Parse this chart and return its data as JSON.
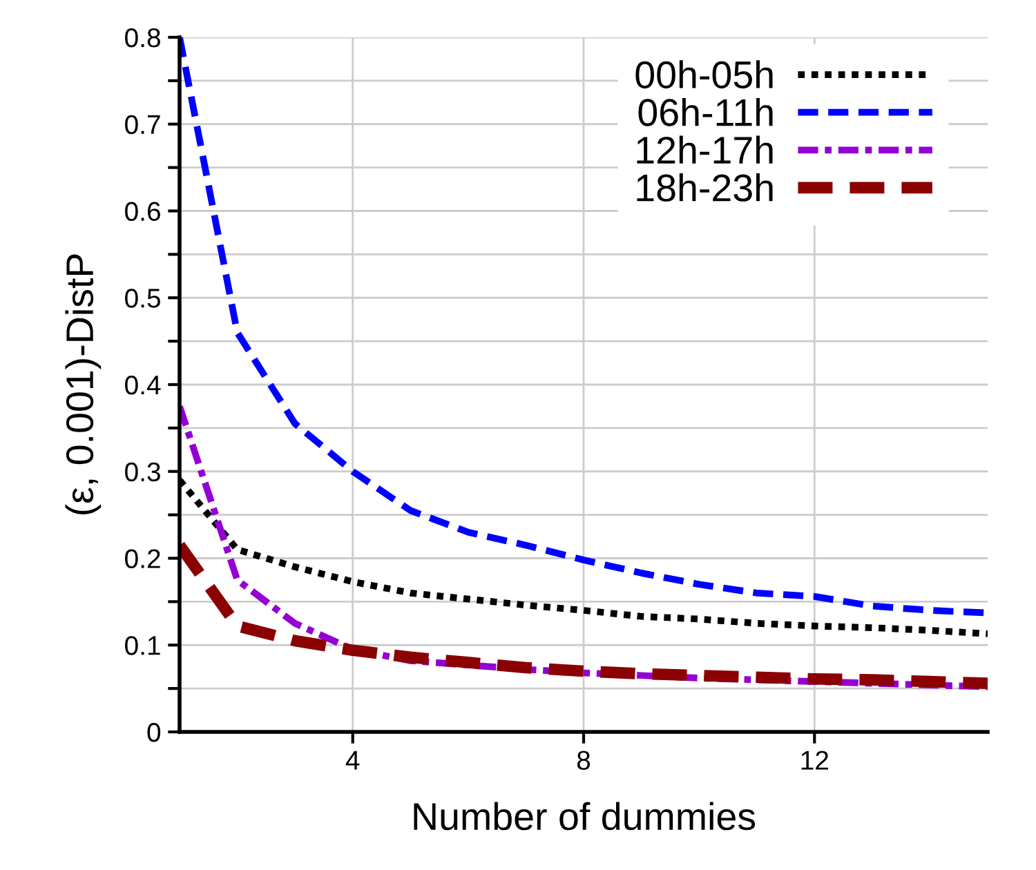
{
  "chart_data": {
    "type": "line",
    "xlabel": "Number of dummies",
    "ylabel": "(ε, 0.001)-DistP",
    "x": [
      1,
      2,
      3,
      4,
      5,
      6,
      7,
      8,
      9,
      10,
      11,
      12,
      13,
      14,
      15
    ],
    "xlim": [
      1,
      15
    ],
    "xticks": [
      4,
      8,
      12
    ],
    "ylim": [
      0,
      0.8
    ],
    "yticks": [
      0,
      {
        "value": 0.05,
        "label": null
      },
      0.1,
      {
        "value": 0.15,
        "label": null
      },
      0.2,
      {
        "value": 0.25,
        "label": null
      },
      0.3,
      {
        "value": 0.35,
        "label": null
      },
      0.4,
      {
        "value": 0.45,
        "label": null
      },
      0.5,
      {
        "value": 0.55,
        "label": null
      },
      0.6,
      {
        "value": 0.65,
        "label": null
      },
      0.7,
      {
        "value": 0.75,
        "label": null
      },
      0.8
    ],
    "grid": true,
    "legend": "top right",
    "marker": "none",
    "series": [
      {
        "name": "00h-05h",
        "color": "#000000",
        "line_style": "dotted",
        "values": [
          0.29,
          0.21,
          0.19,
          0.173,
          0.16,
          0.153,
          0.146,
          0.14,
          0.133,
          0.13,
          0.125,
          0.122,
          0.12,
          0.117,
          0.113
        ]
      },
      {
        "name": "06h-11h",
        "color": "#0000ff",
        "line_style": "dashed",
        "values": [
          0.8,
          0.46,
          0.355,
          0.3,
          0.255,
          0.23,
          0.215,
          0.198,
          0.183,
          0.17,
          0.16,
          0.156,
          0.145,
          0.14,
          0.137
        ]
      },
      {
        "name": "12h-17h",
        "color": "#9400d3",
        "line_style": "dashdot",
        "values": [
          0.375,
          0.175,
          0.125,
          0.095,
          0.082,
          0.077,
          0.072,
          0.068,
          0.065,
          0.062,
          0.06,
          0.058,
          0.056,
          0.054,
          0.052
        ]
      },
      {
        "name": "18h-23h",
        "color": "#8b0000",
        "line_style": "dashed",
        "values": [
          0.215,
          0.122,
          0.105,
          0.094,
          0.086,
          0.08,
          0.074,
          0.07,
          0.067,
          0.065,
          0.063,
          0.061,
          0.06,
          0.058,
          0.056
        ]
      }
    ]
  }
}
